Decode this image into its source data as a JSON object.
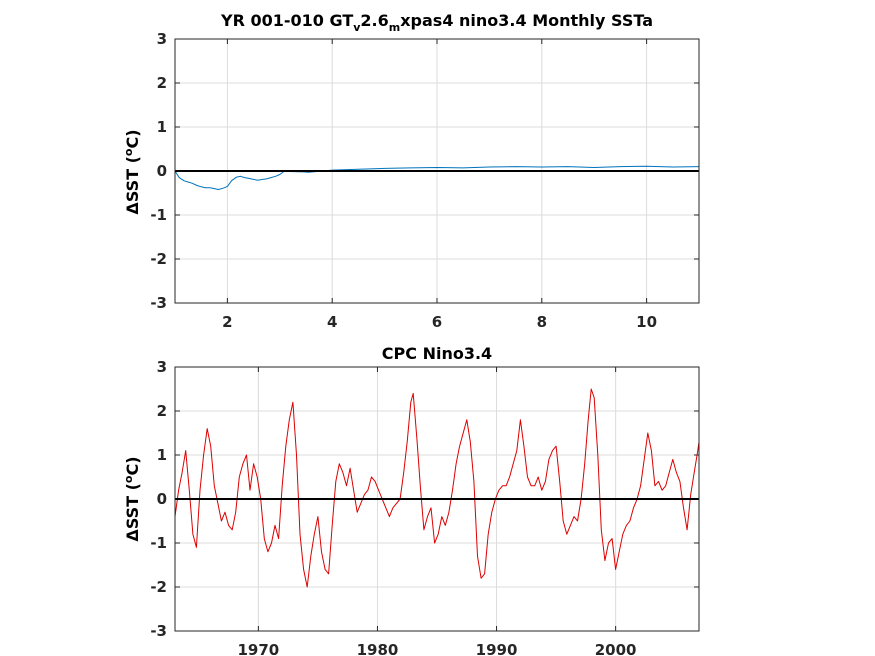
{
  "chart_data": [
    {
      "type": "line",
      "title_parts": [
        "YR 001-010 GT",
        "v",
        "2.6",
        "m",
        "xpas4 nino3.4 Monthly SSTa"
      ],
      "xlabel": "",
      "ylabel_parts": [
        "ΔSST (",
        "o",
        "C)"
      ],
      "xlim": [
        1,
        11
      ],
      "ylim": [
        -3,
        3
      ],
      "xticks": [
        2,
        4,
        6,
        8,
        10
      ],
      "xtick_labels": [
        "2",
        "4",
        "6",
        "8",
        "10"
      ],
      "yticks": [
        -3,
        -2,
        -1,
        0,
        1,
        2,
        3
      ],
      "ytick_labels": [
        "-3",
        "-2",
        "-1",
        "0",
        "1",
        "2",
        "3"
      ],
      "grid": true,
      "zero_line": true,
      "series": [
        {
          "color": "#0072bd",
          "x": [
            1.0,
            1.08,
            1.17,
            1.25,
            1.33,
            1.42,
            1.5,
            1.58,
            1.67,
            1.75,
            1.83,
            1.92,
            2.0,
            2.08,
            2.17,
            2.25,
            2.33,
            2.42,
            2.5,
            2.58,
            2.67,
            2.75,
            2.83,
            2.92,
            3.0,
            3.08,
            3.45,
            3.55,
            4.0,
            4.5,
            5.0,
            5.5,
            6.0,
            6.5,
            7.0,
            7.5,
            8.0,
            8.5,
            9.0,
            9.5,
            10.0,
            10.5,
            11.0
          ],
          "y": [
            0.0,
            -0.15,
            -0.22,
            -0.25,
            -0.28,
            -0.33,
            -0.36,
            -0.38,
            -0.38,
            -0.4,
            -0.42,
            -0.39,
            -0.35,
            -0.22,
            -0.14,
            -0.12,
            -0.15,
            -0.17,
            -0.19,
            -0.21,
            -0.19,
            -0.18,
            -0.15,
            -0.12,
            -0.08,
            -0.01,
            -0.02,
            -0.03,
            0.02,
            0.04,
            0.06,
            0.07,
            0.08,
            0.07,
            0.09,
            0.1,
            0.09,
            0.1,
            0.08,
            0.1,
            0.11,
            0.09,
            0.1
          ]
        }
      ]
    },
    {
      "type": "line",
      "title": "CPC Nino3.4",
      "xlabel": "",
      "ylabel_parts": [
        "ΔSST (",
        "o",
        "C)"
      ],
      "xlim": [
        1963,
        2007
      ],
      "ylim": [
        -3,
        3
      ],
      "xticks": [
        1970,
        1980,
        1990,
        2000
      ],
      "xtick_labels": [
        "1970",
        "1980",
        "1990",
        "2000"
      ],
      "yticks": [
        -3,
        -2,
        -1,
        0,
        1,
        2,
        3
      ],
      "ytick_labels": [
        "-3",
        "-2",
        "-1",
        "0",
        "1",
        "2",
        "3"
      ],
      "grid": true,
      "zero_line": true,
      "series": [
        {
          "color": "#dd0000",
          "x": [
            1963.0,
            1963.3,
            1963.6,
            1963.9,
            1964.2,
            1964.5,
            1964.8,
            1965.1,
            1965.4,
            1965.7,
            1966.0,
            1966.3,
            1966.6,
            1966.9,
            1967.2,
            1967.5,
            1967.8,
            1968.1,
            1968.4,
            1968.7,
            1969.0,
            1969.3,
            1969.6,
            1969.9,
            1970.2,
            1970.5,
            1970.8,
            1971.1,
            1971.4,
            1971.7,
            1972.0,
            1972.3,
            1972.6,
            1972.9,
            1973.2,
            1973.5,
            1973.8,
            1974.1,
            1974.4,
            1974.7,
            1975.0,
            1975.3,
            1975.6,
            1975.9,
            1976.2,
            1976.5,
            1976.8,
            1977.1,
            1977.4,
            1977.7,
            1978.0,
            1978.3,
            1978.6,
            1978.9,
            1979.2,
            1979.5,
            1979.8,
            1980.1,
            1980.4,
            1980.7,
            1981.0,
            1981.3,
            1981.6,
            1981.9,
            1982.2,
            1982.5,
            1982.8,
            1983.0,
            1983.3,
            1983.6,
            1983.9,
            1984.2,
            1984.5,
            1984.8,
            1985.1,
            1985.4,
            1985.7,
            1986.0,
            1986.3,
            1986.6,
            1986.9,
            1987.2,
            1987.5,
            1987.8,
            1988.1,
            1988.4,
            1988.7,
            1989.0,
            1989.3,
            1989.6,
            1989.9,
            1990.2,
            1990.5,
            1990.8,
            1991.1,
            1991.4,
            1991.7,
            1992.0,
            1992.3,
            1992.6,
            1992.9,
            1993.2,
            1993.5,
            1993.8,
            1994.1,
            1994.4,
            1994.7,
            1995.0,
            1995.3,
            1995.6,
            1995.9,
            1996.2,
            1996.5,
            1996.8,
            1997.1,
            1997.4,
            1997.7,
            1997.95,
            1998.2,
            1998.5,
            1998.8,
            1999.1,
            1999.4,
            1999.7,
            2000.0,
            2000.3,
            2000.6,
            2000.9,
            2001.2,
            2001.5,
            2001.8,
            2002.1,
            2002.4,
            2002.7,
            2003.0,
            2003.3,
            2003.6,
            2003.9,
            2004.2,
            2004.5,
            2004.8,
            2005.1,
            2005.4,
            2005.7,
            2006.0,
            2006.3,
            2006.6,
            2006.9,
            2007.0
          ],
          "y": [
            -0.4,
            0.2,
            0.6,
            1.1,
            0.2,
            -0.8,
            -1.1,
            0.2,
            1.0,
            1.6,
            1.2,
            0.3,
            -0.1,
            -0.5,
            -0.3,
            -0.6,
            -0.7,
            -0.3,
            0.5,
            0.8,
            1.0,
            0.2,
            0.8,
            0.5,
            0.0,
            -0.9,
            -1.2,
            -1.0,
            -0.6,
            -0.9,
            0.3,
            1.2,
            1.8,
            2.2,
            1.0,
            -0.8,
            -1.6,
            -2.0,
            -1.3,
            -0.8,
            -0.4,
            -1.2,
            -1.6,
            -1.7,
            -0.6,
            0.4,
            0.8,
            0.6,
            0.3,
            0.7,
            0.2,
            -0.3,
            -0.1,
            0.1,
            0.2,
            0.5,
            0.4,
            0.2,
            0.0,
            -0.2,
            -0.4,
            -0.2,
            -0.1,
            0.0,
            0.6,
            1.3,
            2.2,
            2.4,
            1.4,
            0.3,
            -0.7,
            -0.4,
            -0.2,
            -1.0,
            -0.8,
            -0.4,
            -0.6,
            -0.3,
            0.2,
            0.8,
            1.2,
            1.5,
            1.8,
            1.3,
            0.4,
            -1.3,
            -1.8,
            -1.7,
            -0.8,
            -0.3,
            0.0,
            0.2,
            0.3,
            0.3,
            0.5,
            0.8,
            1.1,
            1.8,
            1.2,
            0.5,
            0.3,
            0.3,
            0.5,
            0.2,
            0.4,
            0.9,
            1.1,
            1.2,
            0.4,
            -0.5,
            -0.8,
            -0.6,
            -0.4,
            -0.5,
            0.0,
            0.8,
            1.8,
            2.5,
            2.3,
            1.0,
            -0.7,
            -1.4,
            -1.0,
            -0.9,
            -1.6,
            -1.2,
            -0.8,
            -0.6,
            -0.5,
            -0.2,
            0.0,
            0.3,
            0.9,
            1.5,
            1.1,
            0.3,
            0.4,
            0.2,
            0.3,
            0.6,
            0.9,
            0.6,
            0.4,
            -0.2,
            -0.7,
            0.1,
            0.6,
            1.1,
            1.3
          ]
        }
      ]
    }
  ]
}
